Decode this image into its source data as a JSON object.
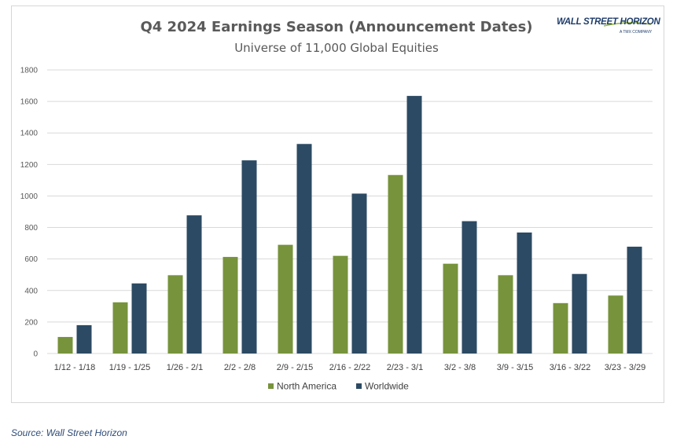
{
  "logo": {
    "main": "WALL STREET HORIZON",
    "sub": "A TMX COMPANY"
  },
  "source": "Source: Wall Street Horizon",
  "colors": {
    "north_america": "#77933c",
    "worldwide": "#2c4a63"
  },
  "chart_data": {
    "type": "bar",
    "title": "Q4 2024 Earnings Season (Announcement Dates)",
    "subtitle": "Universe of 11,000 Global Equities",
    "categories": [
      "1/12 - 1/18",
      "1/19 - 1/25",
      "1/26 - 2/1",
      "2/2 - 2/8",
      "2/9 - 2/15",
      "2/16 - 2/22",
      "2/23 - 3/1",
      "3/2 - 3/8",
      "3/9 - 3/15",
      "3/16 - 3/22",
      "3/23 - 3/29"
    ],
    "series": [
      {
        "name": "North America",
        "values": [
          105,
          325,
          497,
          613,
          690,
          620,
          1133,
          570,
          497,
          320,
          368
        ]
      },
      {
        "name": "Worldwide",
        "values": [
          180,
          445,
          877,
          1226,
          1330,
          1015,
          1635,
          840,
          768,
          505,
          678
        ]
      }
    ],
    "ylim": [
      0,
      1800
    ],
    "yticks": [
      0,
      200,
      400,
      600,
      800,
      1000,
      1200,
      1400,
      1600,
      1800
    ],
    "grid": true,
    "legend": "bottom"
  }
}
